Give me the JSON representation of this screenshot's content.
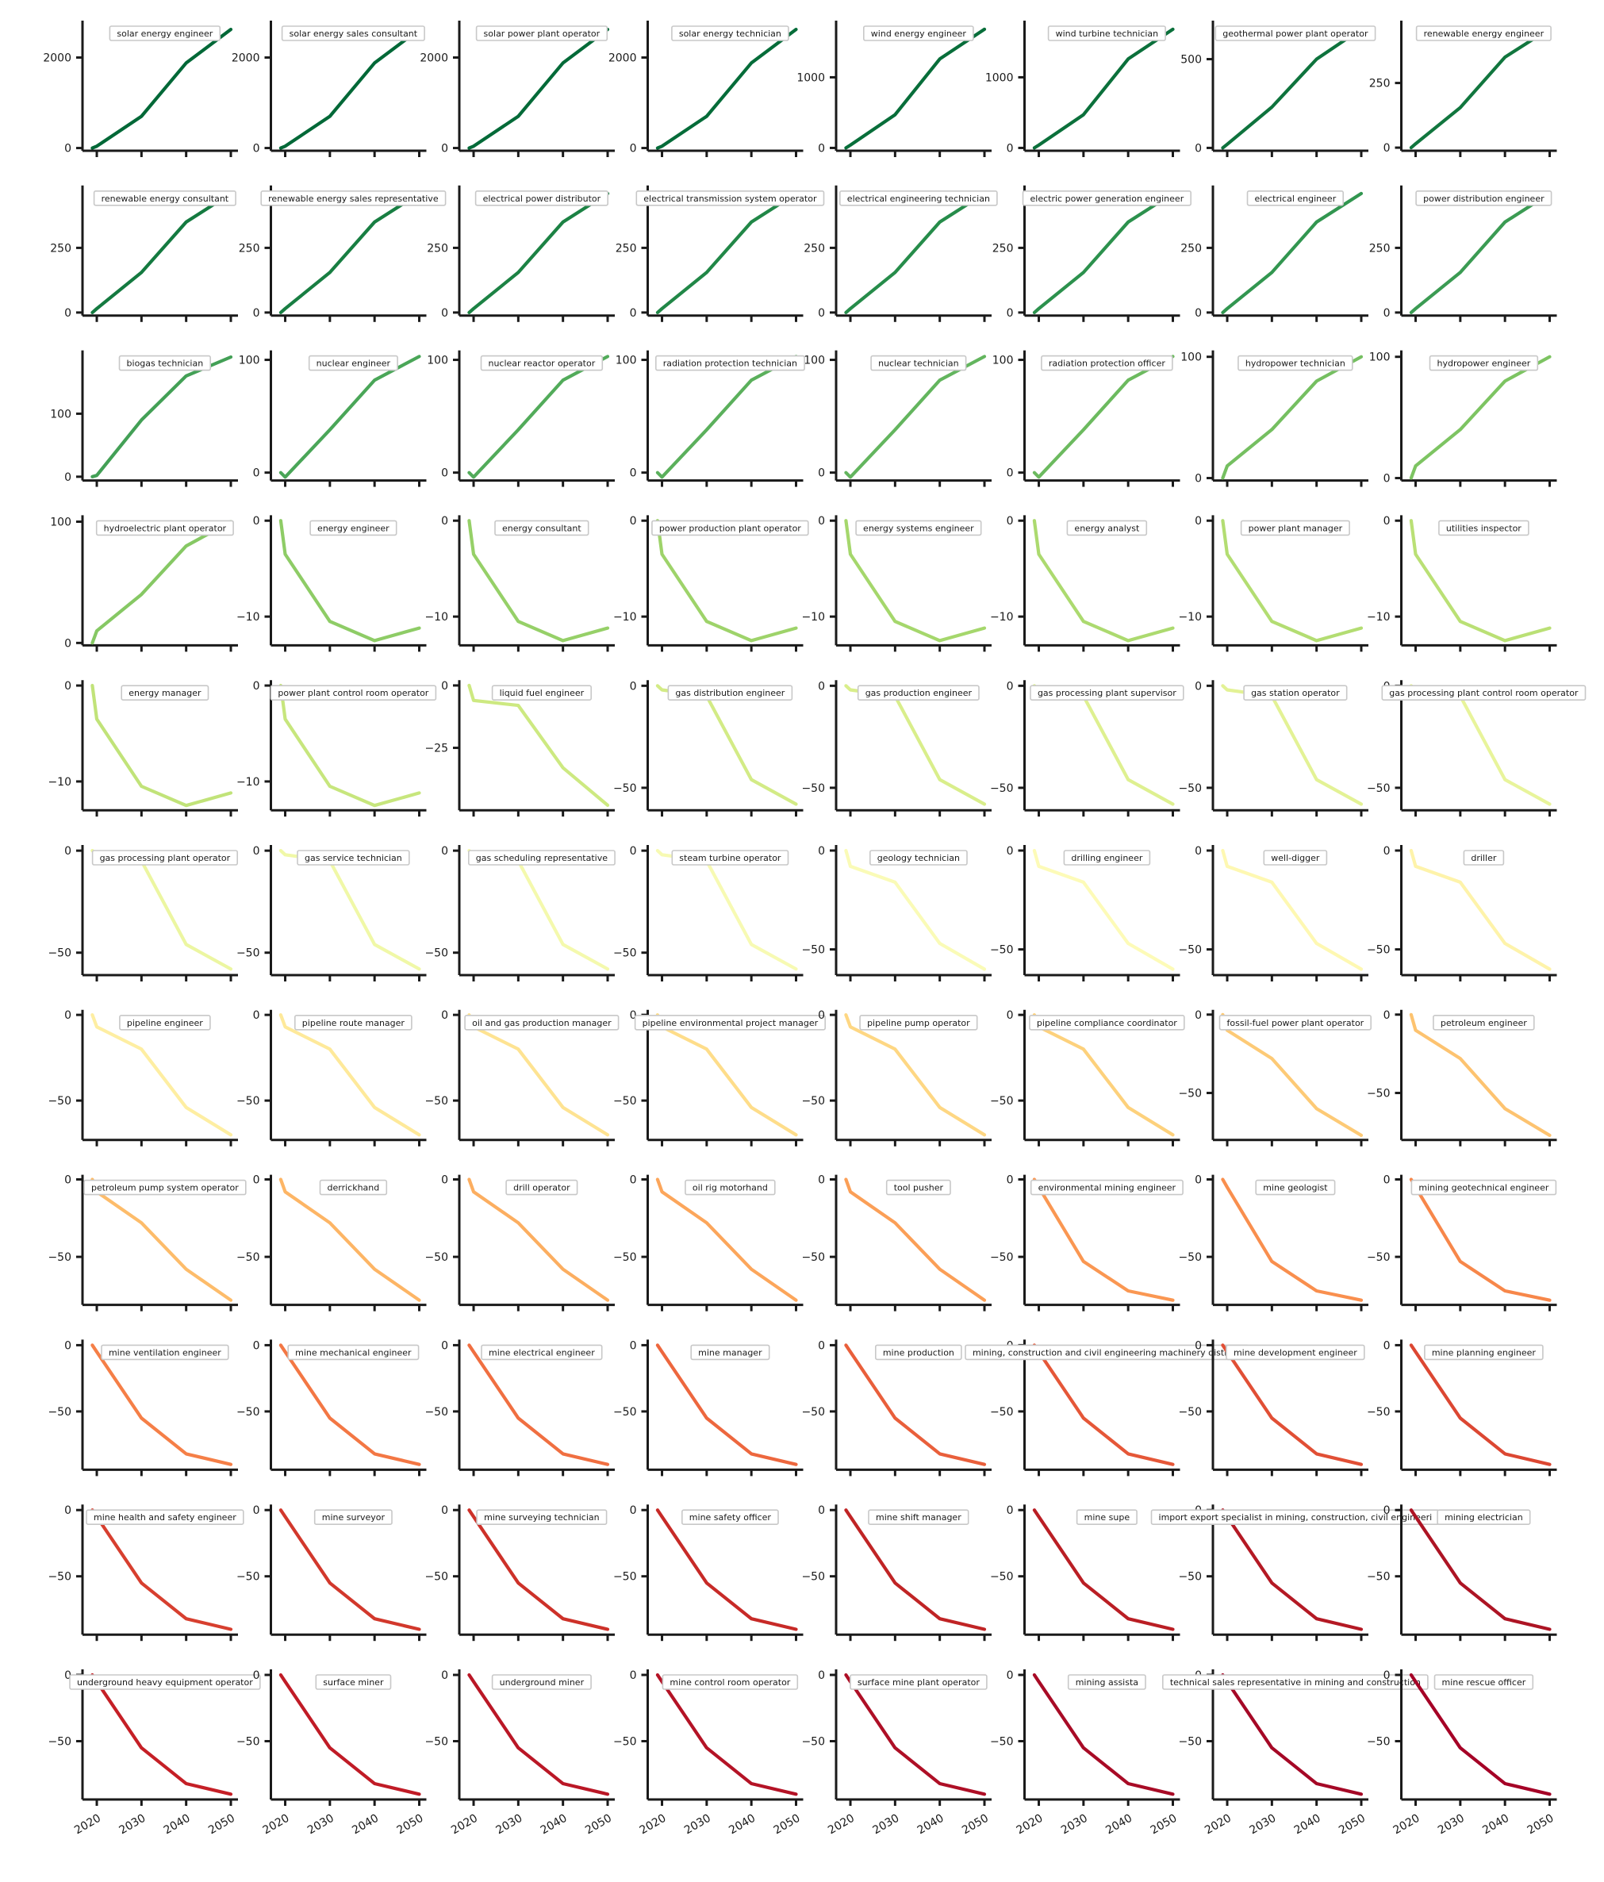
{
  "chart_data": {
    "type": "line",
    "layout": "small-multiples",
    "rows": 11,
    "cols": 8,
    "x": [
      2019,
      2020,
      2030,
      2040,
      2050
    ],
    "x_ticks": [
      2020,
      2030,
      2040,
      2050
    ],
    "x_tick_labels": [
      "2020",
      "2030",
      "2040",
      "2050"
    ],
    "legend_placement": "top-center",
    "grid": false,
    "colormap": "RdYlGn (reversed)",
    "profiles": {
      "A": {
        "values": [
          0,
          40,
          700,
          1880,
          2620
        ],
        "ylim": [
          -60,
          2780
        ],
        "yticks": [
          0,
          2000
        ],
        "ytick_labels": [
          "0",
          "2000"
        ]
      },
      "B": {
        "values": [
          0,
          40,
          470,
          1260,
          1680
        ],
        "ylim": [
          -40,
          1780
        ],
        "yticks": [
          0,
          1000
        ],
        "ytick_labels": [
          "0",
          "1000"
        ]
      },
      "C": {
        "values": [
          0,
          20,
          230,
          500,
          670
        ],
        "ylim": [
          -16,
          708
        ],
        "yticks": [
          0,
          500
        ],
        "ytick_labels": [
          "0",
          "500"
        ]
      },
      "D": {
        "values": [
          0,
          15,
          155,
          350,
          460
        ],
        "ylim": [
          -12,
          485
        ],
        "yticks": [
          0,
          250
        ],
        "ytick_labels": [
          "0",
          "250"
        ]
      },
      "E": {
        "values": [
          0,
          2,
          90,
          160,
          190
        ],
        "ylim": [
          -6,
          198
        ],
        "yticks": [
          0,
          100
        ],
        "ytick_labels": [
          "0",
          "100"
        ]
      },
      "F": {
        "values": [
          0,
          -4,
          38,
          82,
          103
        ],
        "ylim": [
          -7,
          107
        ],
        "yticks": [
          0,
          100
        ],
        "ytick_labels": [
          "0",
          "100"
        ]
      },
      "G": {
        "values": [
          0,
          10,
          40,
          80,
          100
        ],
        "ylim": [
          -2,
          104
        ],
        "yticks": [
          0,
          100
        ],
        "ytick_labels": [
          "0",
          "100"
        ]
      },
      "H": {
        "values": [
          0,
          -3.5,
          -10.5,
          -12.5,
          -11.2
        ],
        "ylim": [
          -13,
          0.4
        ],
        "yticks": [
          0,
          -10
        ],
        "ytick_labels": [
          "0",
          "−10"
        ]
      },
      "I": {
        "values": [
          0,
          -6,
          -8,
          -33,
          -48
        ],
        "ylim": [
          -50,
          1.5
        ],
        "yticks": [
          0,
          -25
        ],
        "ytick_labels": [
          "0",
          "−25"
        ]
      },
      "J": {
        "values": [
          0,
          -2,
          -5,
          -46,
          -58
        ],
        "ylim": [
          -61,
          2
        ],
        "yticks": [
          0,
          -50
        ],
        "ytick_labels": [
          "0",
          "−50"
        ]
      },
      "K": {
        "values": [
          0,
          -8,
          -16,
          -47,
          -60
        ],
        "ylim": [
          -63,
          2
        ],
        "yticks": [
          0,
          -50
        ],
        "ytick_labels": [
          "0",
          "−50"
        ]
      },
      "L": {
        "values": [
          0,
          -7,
          -20,
          -54,
          -70
        ],
        "ylim": [
          -73,
          2
        ],
        "yticks": [
          0,
          -50
        ],
        "ytick_labels": [
          "0",
          "−50"
        ]
      },
      "M": {
        "values": [
          0,
          -10,
          -28,
          -60,
          -77
        ],
        "ylim": [
          -80,
          2
        ],
        "yticks": [
          0,
          -50
        ],
        "ytick_labels": [
          "0",
          "−50"
        ]
      },
      "N": {
        "values": [
          0,
          -8,
          -28,
          -58,
          -78
        ],
        "ylim": [
          -81,
          2
        ],
        "yticks": [
          0,
          -50
        ],
        "ytick_labels": [
          "0",
          "−50"
        ]
      },
      "O": {
        "values": [
          0,
          -5,
          -53,
          -72,
          -78
        ],
        "ylim": [
          -81,
          2
        ],
        "yticks": [
          0,
          -50
        ],
        "ytick_labels": [
          "0",
          "−50"
        ]
      },
      "P": {
        "values": [
          0,
          -5,
          -55,
          -82,
          -90
        ],
        "ylim": [
          -94,
          3
        ],
        "yticks": [
          0,
          -50
        ],
        "ytick_labels": [
          "0",
          "−50"
        ]
      }
    },
    "panels": [
      {
        "name": "solar energy engineer",
        "profile": "A",
        "color": "#006837"
      },
      {
        "name": "solar energy sales consultant",
        "profile": "A",
        "color": "#006837"
      },
      {
        "name": "solar power plant operator",
        "profile": "A",
        "color": "#036a38"
      },
      {
        "name": "solar energy technician",
        "profile": "A",
        "color": "#056c39"
      },
      {
        "name": "wind energy engineer",
        "profile": "B",
        "color": "#086e3a"
      },
      {
        "name": "wind turbine technician",
        "profile": "B",
        "color": "#0b703b"
      },
      {
        "name": "geothermal power plant operator",
        "profile": "C",
        "color": "#0e733d"
      },
      {
        "name": "renewable energy engineer",
        "profile": "D",
        "color": "#11763e"
      },
      {
        "name": "renewable energy consultant",
        "profile": "D",
        "color": "#147a40"
      },
      {
        "name": "renewable energy sales representative",
        "profile": "D",
        "color": "#187e42"
      },
      {
        "name": "electrical power distributor",
        "profile": "D",
        "color": "#1c8244"
      },
      {
        "name": "electrical transmission system operator",
        "profile": "D",
        "color": "#218747"
      },
      {
        "name": "electrical engineering technician",
        "profile": "D",
        "color": "#268c4a"
      },
      {
        "name": "electric power generation engineer",
        "profile": "D",
        "color": "#2c914d"
      },
      {
        "name": "electrical engineer",
        "profile": "D",
        "color": "#329650"
      },
      {
        "name": "power distribution engineer",
        "profile": "D",
        "color": "#3b9b53"
      },
      {
        "name": "biogas technician",
        "profile": "E",
        "color": "#43a056"
      },
      {
        "name": "nuclear engineer",
        "profile": "F",
        "color": "#4aa658"
      },
      {
        "name": "nuclear reactor operator",
        "profile": "F",
        "color": "#52ab5a"
      },
      {
        "name": "radiation protection technician",
        "profile": "F",
        "color": "#5bb05c"
      },
      {
        "name": "nuclear technician",
        "profile": "F",
        "color": "#63b55e"
      },
      {
        "name": "radiation protection officer",
        "profile": "F",
        "color": "#6cba5f"
      },
      {
        "name": "hydropower technician",
        "profile": "G",
        "color": "#75bf61"
      },
      {
        "name": "hydropower engineer",
        "profile": "G",
        "color": "#7dc462"
      },
      {
        "name": "hydroelectric plant operator",
        "profile": "G",
        "color": "#86c864"
      },
      {
        "name": "energy engineer",
        "profile": "H",
        "color": "#8ecc66"
      },
      {
        "name": "energy consultant",
        "profile": "H",
        "color": "#96d068"
      },
      {
        "name": "power production plant operator",
        "profile": "H",
        "color": "#9ed36a"
      },
      {
        "name": "energy systems engineer",
        "profile": "H",
        "color": "#a5d76c"
      },
      {
        "name": "energy analyst",
        "profile": "H",
        "color": "#acda6f"
      },
      {
        "name": "power plant manager",
        "profile": "H",
        "color": "#b3dd72"
      },
      {
        "name": "utilities inspector",
        "profile": "H",
        "color": "#bae075"
      },
      {
        "name": "energy manager",
        "profile": "H",
        "color": "#c1e379"
      },
      {
        "name": "power plant control room operator",
        "profile": "H",
        "color": "#c7e67d"
      },
      {
        "name": "liquid fuel engineer",
        "profile": "I",
        "color": "#cde981"
      },
      {
        "name": "gas distribution engineer",
        "profile": "J",
        "color": "#d3eb86"
      },
      {
        "name": "gas production engineer",
        "profile": "J",
        "color": "#d9ee8b"
      },
      {
        "name": "gas processing plant supervisor",
        "profile": "J",
        "color": "#def090"
      },
      {
        "name": "gas station operator",
        "profile": "J",
        "color": "#e3f295"
      },
      {
        "name": "gas processing plant control room operator",
        "profile": "J",
        "color": "#e8f49b"
      },
      {
        "name": "gas processing plant operator",
        "profile": "J",
        "color": "#ecf6a1"
      },
      {
        "name": "gas service technician",
        "profile": "J",
        "color": "#f0f8a7"
      },
      {
        "name": "gas scheduling representative",
        "profile": "J",
        "color": "#f4f9ad"
      },
      {
        "name": "steam turbine operator",
        "profile": "J",
        "color": "#f7fab3"
      },
      {
        "name": "geology technician",
        "profile": "K",
        "color": "#fafbb7"
      },
      {
        "name": "drilling engineer",
        "profile": "K",
        "color": "#fdfbb8"
      },
      {
        "name": "well-digger",
        "profile": "K",
        "color": "#fef8b2"
      },
      {
        "name": "driller",
        "profile": "K",
        "color": "#fef3aa"
      },
      {
        "name": "pipeline engineer",
        "profile": "L",
        "color": "#feeea2"
      },
      {
        "name": "pipeline route manager",
        "profile": "L",
        "color": "#fee99a"
      },
      {
        "name": "oil and gas production manager",
        "profile": "L",
        "color": "#fee392"
      },
      {
        "name": "pipeline environmental project manager",
        "profile": "L",
        "color": "#fedd8a"
      },
      {
        "name": "pipeline pump operator",
        "profile": "L",
        "color": "#fed783"
      },
      {
        "name": "pipeline compliance coordinator",
        "profile": "L",
        "color": "#fdd17c"
      },
      {
        "name": "fossil-fuel power plant operator",
        "profile": "M",
        "color": "#fdca76"
      },
      {
        "name": "petroleum engineer",
        "profile": "M",
        "color": "#fdc370"
      },
      {
        "name": "petroleum pump system operator",
        "profile": "N",
        "color": "#fdbc6a"
      },
      {
        "name": "derrickhand",
        "profile": "N",
        "color": "#fdb565"
      },
      {
        "name": "drill operator",
        "profile": "N",
        "color": "#fcae60"
      },
      {
        "name": "oil rig motorhand",
        "profile": "N",
        "color": "#fca65b"
      },
      {
        "name": "tool pusher",
        "profile": "N",
        "color": "#fb9f57"
      },
      {
        "name": "environmental mining engineer",
        "profile": "O",
        "color": "#fa9752"
      },
      {
        "name": "mine geologist",
        "profile": "O",
        "color": "#f98f4e"
      },
      {
        "name": "mining geotechnical engineer",
        "profile": "O",
        "color": "#f7874a"
      },
      {
        "name": "mine ventilation engineer",
        "profile": "P",
        "color": "#f57f47"
      },
      {
        "name": "mine mechanical engineer",
        "profile": "P",
        "color": "#f37744"
      },
      {
        "name": "mine electrical engineer",
        "profile": "P",
        "color": "#f06f41"
      },
      {
        "name": "mine manager",
        "profile": "P",
        "color": "#ed673e"
      },
      {
        "name": "mine production manager",
        "profile": "P",
        "color": "#e95f3b",
        "shown_label": "mine production"
      },
      {
        "name": "mining, construction and civil engineering machinery distributor",
        "profile": "P",
        "color": "#e55738",
        "shown_label": "mining, construction and civil engineering machinery distribu"
      },
      {
        "name": "mine development engineer",
        "profile": "P",
        "color": "#e14f35"
      },
      {
        "name": "mine planning engineer",
        "profile": "P",
        "color": "#dc4732"
      },
      {
        "name": "mine health and safety engineer",
        "profile": "P",
        "color": "#d73f2f"
      },
      {
        "name": "mine surveyor",
        "profile": "P",
        "color": "#d2382c"
      },
      {
        "name": "mine surveying technician",
        "profile": "P",
        "color": "#cd3129"
      },
      {
        "name": "mine safety officer",
        "profile": "P",
        "color": "#c72a27"
      },
      {
        "name": "mine shift manager",
        "profile": "P",
        "color": "#c02425"
      },
      {
        "name": "mine supervisor",
        "profile": "P",
        "color": "#ba1e24",
        "shown_label": "mine supe"
      },
      {
        "name": "import export specialist in mining, construction, civil engineering machinery",
        "profile": "P",
        "color": "#b41924",
        "shown_label": "import export specialist in mining, construction, civil engineeri"
      },
      {
        "name": "mining electrician",
        "profile": "P",
        "color": "#ad1424",
        "shown_label": "mining electrician"
      },
      {
        "name": "underground heavy equipment operator",
        "profile": "P",
        "color": "#c51f26"
      },
      {
        "name": "surface miner",
        "profile": "P",
        "color": "#c01b26"
      },
      {
        "name": "underground miner",
        "profile": "P",
        "color": "#ba1726"
      },
      {
        "name": "mine control room operator",
        "profile": "P",
        "color": "#b41326"
      },
      {
        "name": "surface mine plant operator",
        "profile": "P",
        "color": "#ae0f26"
      },
      {
        "name": "mining assistant",
        "profile": "P",
        "color": "#a80b26",
        "shown_label": "mining assista"
      },
      {
        "name": "technical sales representative in mining and construction machinery",
        "profile": "P",
        "color": "#a50826",
        "shown_label": "technical sales representative in mining and construction"
      },
      {
        "name": "mine rescue officer",
        "profile": "P",
        "color": "#a50026"
      }
    ]
  }
}
